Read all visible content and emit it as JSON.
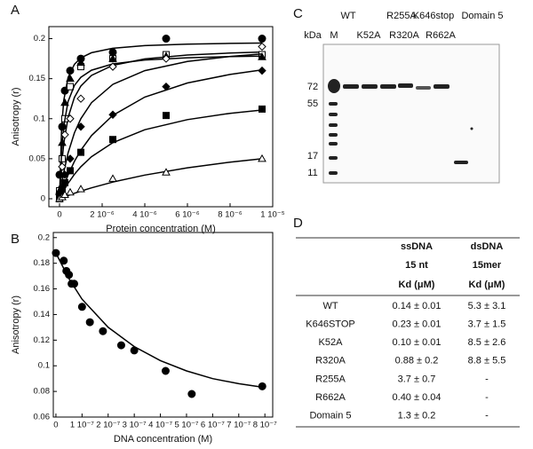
{
  "chart_data": [
    {
      "type": "scatter",
      "label": "A",
      "ylabel": "Anisotropy (r)",
      "xlabel": "Protein concentration (M)",
      "xlim": [
        -5e-07,
        1e-05
      ],
      "ylim": [
        -0.01,
        0.215
      ],
      "xticks": [
        {
          "value": 0,
          "label": "0"
        },
        {
          "value": 2e-06,
          "label": "2 10⁻⁶"
        },
        {
          "value": 4e-06,
          "label": "4 10⁻⁶"
        },
        {
          "value": 6e-06,
          "label": "6 10⁻⁶"
        },
        {
          "value": 8e-06,
          "label": "8 10⁻⁶"
        },
        {
          "value": 1e-05,
          "label": "1 10⁻⁵"
        }
      ],
      "yticks": [
        0,
        0.05,
        0.1,
        0.15,
        0.2
      ],
      "fit_x": [
        0,
        1e-07,
        2e-07,
        4e-07,
        7e-07,
        1e-06,
        1.5e-06,
        2.5e-06,
        4e-06,
        6e-06,
        8e-06,
        9.5e-06
      ],
      "series": [
        {
          "marker": "circle",
          "filled": true,
          "x": [
            0,
            1.25e-07,
            2.5e-07,
            5e-07,
            1e-06,
            2.5e-06,
            5e-06,
            9.5e-06
          ],
          "y": [
            0.03,
            0.09,
            0.135,
            0.16,
            0.175,
            0.183,
            0.2,
            0.2
          ],
          "fit": [
            0,
            0.0895,
            0.123,
            0.1515,
            0.168,
            0.176,
            0.1824,
            0.188,
            0.1913,
            0.1931,
            0.1941,
            0.1945
          ]
        },
        {
          "marker": "square",
          "filled": false,
          "x": [
            0,
            1.25e-07,
            2.5e-07,
            5e-07,
            1e-06,
            2.5e-06,
            5e-06,
            9.5e-06
          ],
          "y": [
            0.01,
            0.05,
            0.1,
            0.14,
            0.165,
            0.175,
            0.18,
            0.18
          ],
          "fit": [
            0,
            0.0422,
            0.0691,
            0.1013,
            0.1267,
            0.1407,
            0.154,
            0.1667,
            0.1747,
            0.1795,
            0.182,
            0.1833
          ]
        },
        {
          "marker": "triangle",
          "filled": true,
          "x": [
            0,
            1.25e-07,
            2.5e-07,
            5e-07,
            1e-06,
            2.5e-06,
            5e-06,
            9.5e-06
          ],
          "y": [
            0.01,
            0.07,
            0.12,
            0.15,
            0.17,
            0.175,
            0.178,
            0.177
          ],
          "fit": [
            0,
            0.0607,
            0.091,
            0.1213,
            0.1416,
            0.1517,
            0.1606,
            0.1685,
            0.1733,
            0.1761,
            0.1776,
            0.1782
          ]
        },
        {
          "marker": "diamond",
          "filled": false,
          "x": [
            0,
            1.25e-07,
            2.5e-07,
            5e-07,
            1e-06,
            2.5e-06,
            5e-06,
            9.5e-06
          ],
          "y": [
            0.005,
            0.04,
            0.08,
            0.1,
            0.125,
            0.165,
            0.175,
            0.19
          ],
          "fit": [
            0,
            0.0182,
            0.0333,
            0.0571,
            0.0824,
            0.1,
            0.12,
            0.1429,
            0.16,
            0.1714,
            0.1778,
            0.181
          ]
        },
        {
          "marker": "diamond",
          "filled": true,
          "x": [
            0,
            1.25e-07,
            2.5e-07,
            5e-07,
            1e-06,
            2.5e-06,
            5e-06,
            9.5e-06
          ],
          "y": [
            0.005,
            0.015,
            0.03,
            0.05,
            0.09,
            0.105,
            0.14,
            0.16
          ],
          "fit": [
            0,
            0.0083,
            0.016,
            0.0296,
            0.0467,
            0.0606,
            0.0789,
            0.1042,
            0.127,
            0.1446,
            0.1553,
            0.161
          ]
        },
        {
          "marker": "square",
          "filled": true,
          "x": [
            0,
            1.25e-07,
            2.5e-07,
            5e-07,
            1e-06,
            2.5e-06,
            5e-06,
            9.5e-06
          ],
          "y": [
            0,
            0.01,
            0.02,
            0.035,
            0.058,
            0.074,
            0.104,
            0.112
          ],
          "fit": [
            0,
            0.0054,
            0.0104,
            0.0193,
            0.0306,
            0.04,
            0.0525,
            0.07,
            0.0862,
            0.0988,
            0.1067,
            0.1108
          ]
        },
        {
          "marker": "triangle",
          "filled": false,
          "x": [
            0,
            1.25e-07,
            2.5e-07,
            5e-07,
            1e-06,
            2.5e-06,
            5e-06,
            9.5e-06
          ],
          "y": [
            0,
            0.002,
            0.005,
            0.008,
            0.012,
            0.025,
            0.033,
            0.05
          ],
          "fit": [
            0,
            0.001,
            0.0021,
            0.004,
            0.0069,
            0.0095,
            0.0136,
            0.0208,
            0.0296,
            0.0387,
            0.0457,
            0.05
          ]
        }
      ]
    },
    {
      "type": "scatter",
      "label": "B",
      "ylabel": "Anisotropy (r)",
      "xlabel": "DNA concentration (M)",
      "xlim": [
        -1e-08,
        8.3e-07
      ],
      "ylim": [
        0.06,
        0.204
      ],
      "xticks": [
        {
          "value": 0,
          "label": "0"
        },
        {
          "value": 1e-07,
          "label": "1 10⁻⁷"
        },
        {
          "value": 2e-07,
          "label": "2 10⁻⁷"
        },
        {
          "value": 3e-07,
          "label": "3 10⁻⁷"
        },
        {
          "value": 4e-07,
          "label": "4 10⁻⁷"
        },
        {
          "value": 5e-07,
          "label": "5 10⁻⁷"
        },
        {
          "value": 6e-07,
          "label": "6 10⁻⁷"
        },
        {
          "value": 7e-07,
          "label": "7 10⁻⁷"
        },
        {
          "value": 8e-07,
          "label": "8 10⁻⁷"
        }
      ],
      "yticks": [
        0.06,
        0.08,
        0.1,
        0.12,
        0.14,
        0.16,
        0.18,
        0.2
      ],
      "fit_x": [
        0,
        5e-08,
        1e-07,
        2e-07,
        3e-07,
        4e-07,
        5e-07,
        6e-07,
        7e-07,
        8e-07
      ],
      "series": [
        {
          "marker": "circle",
          "filled": true,
          "x": [
            0,
            3e-08,
            4e-08,
            5e-08,
            6e-08,
            7e-08,
            1e-07,
            1.3e-07,
            1.8e-07,
            2.5e-07,
            3e-07,
            4.2e-07,
            5.2e-07,
            7.9e-07
          ],
          "y": [
            0.188,
            0.182,
            0.174,
            0.171,
            0.164,
            0.164,
            0.146,
            0.134,
            0.127,
            0.116,
            0.112,
            0.096,
            0.078,
            0.084
          ],
          "fit": [
            0.188,
            0.168,
            0.152,
            0.13,
            0.115,
            0.104,
            0.096,
            0.09,
            0.086,
            0.083
          ]
        }
      ]
    }
  ],
  "gel": {
    "label": "C",
    "top_lanes": [
      "WT",
      "R255A",
      "K646stop",
      "Domain 5"
    ],
    "bottom_lanes": [
      "M",
      "K52A",
      "R320A",
      "R662A"
    ],
    "unit": "kDa",
    "markers": [
      72,
      55,
      17,
      11
    ]
  },
  "table": {
    "label": "D",
    "columns": [
      {
        "name": "ssDNA",
        "sub": "15 nt",
        "unit": "Kd (μM)"
      },
      {
        "name": "dsDNA",
        "sub": "15mer",
        "unit": "Kd (μM)"
      }
    ],
    "rows": [
      [
        "WT",
        "0.14 ± 0.01",
        "5.3 ± 3.1"
      ],
      [
        "K646STOP",
        "0.23 ± 0.01",
        "3.7 ± 1.5"
      ],
      [
        "K52A",
        "0.10 ± 0.01",
        "8.5 ± 2.6"
      ],
      [
        "R320A",
        "0.88 ± 0.2",
        "8.8 ± 5.5"
      ],
      [
        "R255A",
        "3.7 ± 0.7",
        "-"
      ],
      [
        "R662A",
        "0.40 ± 0.04",
        "-"
      ],
      [
        "Domain 5",
        "1.3 ± 0.2",
        "-"
      ]
    ]
  }
}
